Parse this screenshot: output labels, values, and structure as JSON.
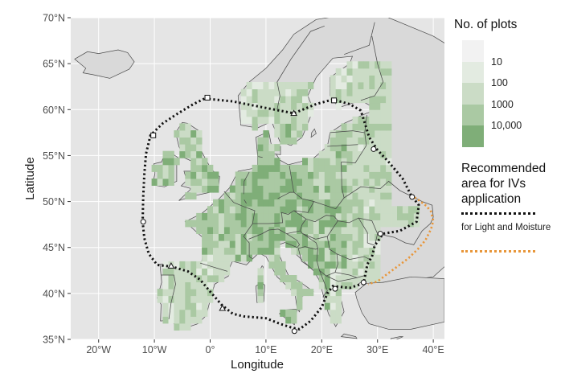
{
  "map": {
    "x_axis_title": "Longitude",
    "y_axis_title": "Latitude",
    "x_ticks": [
      "20°W",
      "10°W",
      "0°",
      "10°E",
      "20°E",
      "30°E",
      "40°E"
    ],
    "y_ticks": [
      "70°N",
      "65°N",
      "60°N",
      "55°N",
      "50°N",
      "45°N",
      "40°N",
      "35°N"
    ],
    "x_range_deg": [
      -25,
      42
    ],
    "y_range_deg": [
      35,
      70
    ],
    "panel_bg": "#e5e5e5",
    "land_fill": "#d9d9d9",
    "border_color": "#4a4a4a"
  },
  "legend": {
    "plots_title": "No. of plots",
    "plots_levels": [
      {
        "label": "",
        "color": "#f2f2f2"
      },
      {
        "label": "10",
        "color": "#e3ebe1"
      },
      {
        "label": "100",
        "color": "#cbdcc6"
      },
      {
        "label": "1000",
        "color": "#aac9a3"
      },
      {
        "label": "10,000",
        "color": "#7fae78"
      }
    ],
    "area_title": "Recommended area for IVs application",
    "lines": [
      {
        "label": "",
        "color": "#111111"
      },
      {
        "label": "for Light and Moisture",
        "color": "#e8963a"
      }
    ]
  }
}
